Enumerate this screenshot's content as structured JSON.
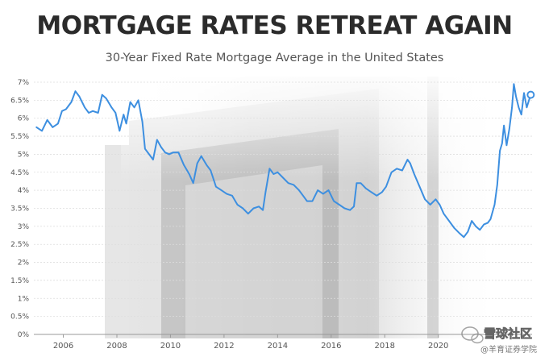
{
  "chart_data": {
    "type": "line",
    "title": "MORTGAGE RATES RETREAT AGAIN",
    "subtitle": "30-Year Fixed Rate Mortgage Average in the United States",
    "xlabel": "",
    "ylabel": "",
    "y_ticks": [
      "0%",
      "0.5%",
      "1%",
      "1.5%",
      "2%",
      "2.5%",
      "3%",
      "3.5%",
      "4%",
      "4.5%",
      "5%",
      "5.5%",
      "6%",
      "6.5%",
      "7%"
    ],
    "x_ticks": [
      "2006",
      "2008",
      "2010",
      "2012",
      "2014",
      "2016",
      "2018",
      "2020"
    ],
    "xlim": [
      2004.9,
      2023.5
    ],
    "ylim": [
      0,
      7
    ],
    "grid": true,
    "series": [
      {
        "color": "#3d8fe0",
        "points": [
          [
            2005.0,
            5.75
          ],
          [
            2005.2,
            5.65
          ],
          [
            2005.4,
            5.95
          ],
          [
            2005.6,
            5.75
          ],
          [
            2005.8,
            5.85
          ],
          [
            2005.95,
            6.2
          ],
          [
            2006.1,
            6.25
          ],
          [
            2006.3,
            6.45
          ],
          [
            2006.45,
            6.75
          ],
          [
            2006.6,
            6.6
          ],
          [
            2006.8,
            6.3
          ],
          [
            2006.95,
            6.15
          ],
          [
            2007.1,
            6.2
          ],
          [
            2007.3,
            6.15
          ],
          [
            2007.45,
            6.65
          ],
          [
            2007.6,
            6.55
          ],
          [
            2007.8,
            6.3
          ],
          [
            2007.95,
            6.15
          ],
          [
            2008.1,
            5.65
          ],
          [
            2008.25,
            6.1
          ],
          [
            2008.35,
            5.85
          ],
          [
            2008.5,
            6.45
          ],
          [
            2008.65,
            6.3
          ],
          [
            2008.8,
            6.5
          ],
          [
            2008.95,
            5.9
          ],
          [
            2009.05,
            5.15
          ],
          [
            2009.2,
            5.0
          ],
          [
            2009.35,
            4.85
          ],
          [
            2009.5,
            5.4
          ],
          [
            2009.65,
            5.2
          ],
          [
            2009.8,
            5.05
          ],
          [
            2009.95,
            5.0
          ],
          [
            2010.1,
            5.05
          ],
          [
            2010.3,
            5.05
          ],
          [
            2010.5,
            4.7
          ],
          [
            2010.7,
            4.45
          ],
          [
            2010.85,
            4.2
          ],
          [
            2011.0,
            4.75
          ],
          [
            2011.15,
            4.95
          ],
          [
            2011.35,
            4.7
          ],
          [
            2011.5,
            4.55
          ],
          [
            2011.7,
            4.1
          ],
          [
            2011.9,
            4.0
          ],
          [
            2012.1,
            3.9
          ],
          [
            2012.3,
            3.85
          ],
          [
            2012.5,
            3.6
          ],
          [
            2012.7,
            3.5
          ],
          [
            2012.9,
            3.35
          ],
          [
            2013.1,
            3.5
          ],
          [
            2013.3,
            3.55
          ],
          [
            2013.45,
            3.45
          ],
          [
            2013.55,
            3.95
          ],
          [
            2013.7,
            4.6
          ],
          [
            2013.85,
            4.45
          ],
          [
            2014.0,
            4.5
          ],
          [
            2014.2,
            4.35
          ],
          [
            2014.4,
            4.2
          ],
          [
            2014.6,
            4.15
          ],
          [
            2014.8,
            4.0
          ],
          [
            2014.95,
            3.85
          ],
          [
            2015.1,
            3.7
          ],
          [
            2015.3,
            3.7
          ],
          [
            2015.5,
            4.0
          ],
          [
            2015.7,
            3.9
          ],
          [
            2015.9,
            4.0
          ],
          [
            2016.1,
            3.7
          ],
          [
            2016.3,
            3.6
          ],
          [
            2016.5,
            3.5
          ],
          [
            2016.7,
            3.45
          ],
          [
            2016.85,
            3.55
          ],
          [
            2016.95,
            4.2
          ],
          [
            2017.1,
            4.2
          ],
          [
            2017.3,
            4.05
          ],
          [
            2017.5,
            3.95
          ],
          [
            2017.7,
            3.85
          ],
          [
            2017.9,
            3.95
          ],
          [
            2018.05,
            4.1
          ],
          [
            2018.25,
            4.5
          ],
          [
            2018.45,
            4.6
          ],
          [
            2018.65,
            4.55
          ],
          [
            2018.85,
            4.85
          ],
          [
            2018.95,
            4.75
          ],
          [
            2019.1,
            4.45
          ],
          [
            2019.3,
            4.1
          ],
          [
            2019.5,
            3.75
          ],
          [
            2019.7,
            3.6
          ],
          [
            2019.9,
            3.75
          ],
          [
            2020.05,
            3.6
          ],
          [
            2020.2,
            3.35
          ],
          [
            2020.4,
            3.15
          ],
          [
            2020.6,
            2.95
          ],
          [
            2020.8,
            2.8
          ],
          [
            2020.95,
            2.7
          ],
          [
            2021.1,
            2.85
          ],
          [
            2021.25,
            3.15
          ],
          [
            2021.4,
            3.0
          ],
          [
            2021.55,
            2.9
          ],
          [
            2021.7,
            3.05
          ],
          [
            2021.85,
            3.1
          ],
          [
            2021.95,
            3.2
          ],
          [
            2022.1,
            3.6
          ],
          [
            2022.2,
            4.15
          ],
          [
            2022.3,
            5.1
          ],
          [
            2022.38,
            5.3
          ],
          [
            2022.45,
            5.8
          ],
          [
            2022.55,
            5.25
          ],
          [
            2022.65,
            5.7
          ],
          [
            2022.75,
            6.3
          ],
          [
            2022.82,
            6.95
          ],
          [
            2022.9,
            6.6
          ],
          [
            2023.0,
            6.3
          ],
          [
            2023.1,
            6.1
          ],
          [
            2023.2,
            6.7
          ],
          [
            2023.3,
            6.3
          ],
          [
            2023.45,
            6.65
          ]
        ]
      }
    ]
  },
  "watermark": {
    "line1": "雪球社区",
    "line2": "@羊育证券学院"
  }
}
